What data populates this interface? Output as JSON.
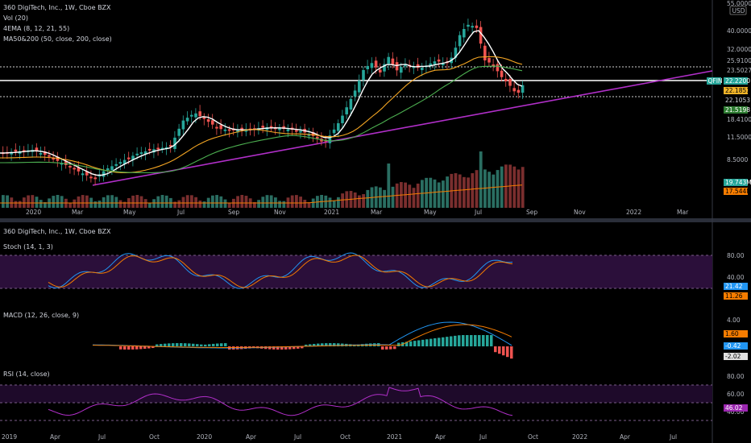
{
  "main_panel": {
    "title": "360 DigiTech, Inc., 1W, Cboe BZX",
    "indicators": [
      "Vol (20)",
      "4EMA (8, 12, 21, 55)",
      "MA50&200 (50, close, 200, close)"
    ],
    "currency": "USD",
    "ticker": "QFIN",
    "price_axis": [
      "55.0000",
      "40.0000",
      "32.0000",
      "25.9100",
      "23.5027",
      "18.4100",
      "11.5000",
      "8.5000"
    ],
    "price_tags": [
      {
        "value": "22.2200",
        "color": "#26a69a",
        "is_ticker": true
      },
      {
        "value": "22.1851",
        "color": "#f0b429"
      },
      {
        "value": "22.1053",
        "color": "#000000"
      },
      {
        "value": "21.5198",
        "color": "#2e7d32"
      }
    ],
    "volume_tags": [
      {
        "value": "19.743M",
        "color": "#26a69a"
      },
      {
        "value": "17.544M",
        "color": "#f57c00"
      }
    ],
    "x_axis": [
      "2020",
      "Mar",
      "May",
      "Jul",
      "Sep",
      "Nov",
      "2021",
      "Mar",
      "May",
      "Jul",
      "Sep",
      "Nov",
      "2022",
      "Mar"
    ]
  },
  "lower_panel": {
    "title": "360 DigiTech, Inc., 1W, Cboe BZX",
    "stoch": {
      "title": "Stoch (14, 1, 3)",
      "axis": [
        "80.00",
        "40.00"
      ],
      "tags": [
        {
          "value": "21.42",
          "color": "#2196f3"
        },
        {
          "value": "11.26",
          "color": "#f57c00"
        }
      ]
    },
    "macd": {
      "title": "MACD (12, 26, close, 9)",
      "axis": [
        "4.00"
      ],
      "tags": [
        {
          "value": "1.60",
          "color": "#f57c00"
        },
        {
          "value": "-0.42",
          "color": "#2196f3"
        },
        {
          "value": "-2.02",
          "color": "#e0e0e0"
        }
      ]
    },
    "rsi": {
      "title": "RSI (14, close)",
      "axis": [
        "80.00",
        "60.00",
        "40.00"
      ],
      "tags": [
        {
          "value": "46.02",
          "color": "#9c27b0"
        }
      ]
    },
    "x_axis": [
      "2019",
      "Apr",
      "Jul",
      "Oct",
      "2020",
      "Apr",
      "Jul",
      "Oct",
      "2021",
      "Apr",
      "Jul",
      "Oct",
      "2022",
      "Apr",
      "Jul"
    ]
  },
  "colors": {
    "up": "#26a69a",
    "down": "#ef5350",
    "purple": "#b12fc9",
    "bg": "#000000"
  }
}
